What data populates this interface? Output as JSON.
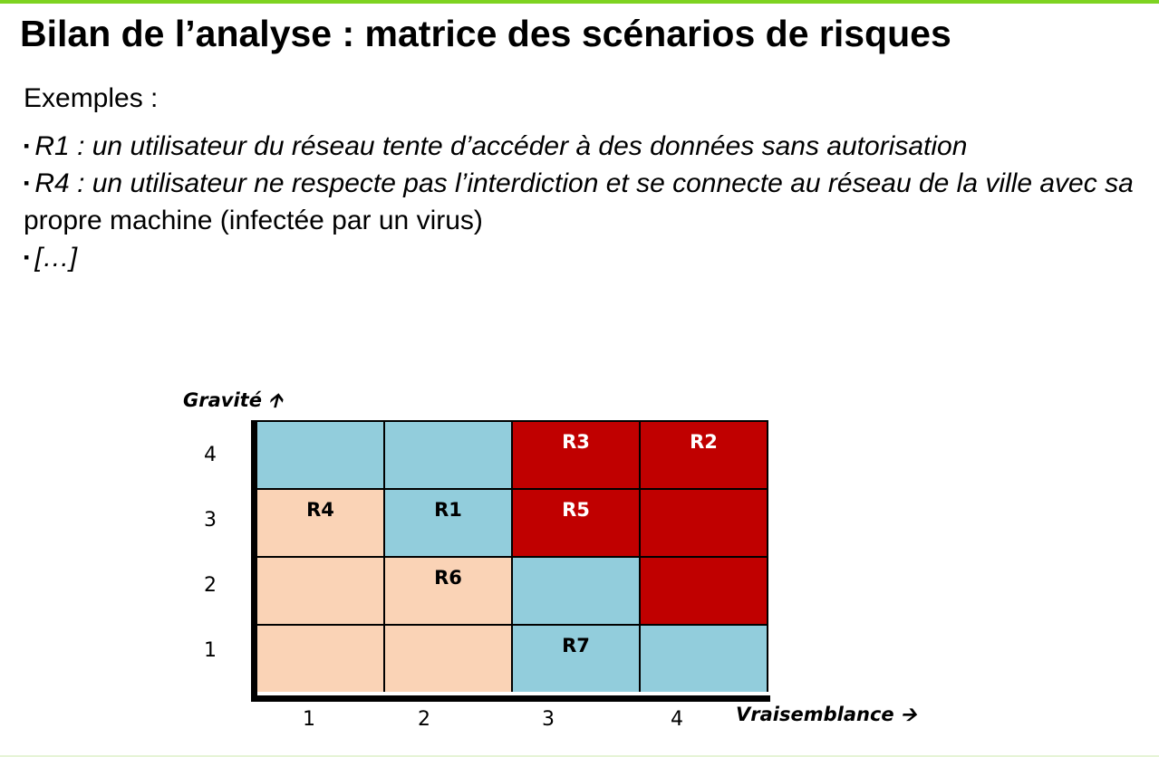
{
  "title": "Bilan de l’analyse : matrice des scénarios de risques",
  "intro": "Exemples :",
  "bullets": [
    {
      "marker": "▪",
      "italic": "R1 : un utilisateur du réseau tente d’accéder à des données sans autorisation",
      "plain": ""
    },
    {
      "marker": "▪",
      "italic": "R4 : un utilisateur ne respecte pas l’interdiction et se connecte au réseau de la ville avec sa",
      "plain": "propre machine (infectée par un virus)"
    },
    {
      "marker": "▪",
      "italic": "[…]",
      "plain": ""
    }
  ],
  "matrix": {
    "y_axis_title": "Gravité 🡩",
    "x_axis_title": "Vraisemblance 🡪",
    "y_ticks": [
      "4",
      "3",
      "2",
      "1"
    ],
    "x_ticks": [
      "1",
      "2",
      "3",
      "4"
    ],
    "colors": {
      "blue": "#92cddc",
      "peach": "#fad3b6",
      "red": "#c00000"
    },
    "rows": [
      {
        "gravite": "4",
        "cells": [
          {
            "color": "blue",
            "label": ""
          },
          {
            "color": "blue",
            "label": ""
          },
          {
            "color": "red",
            "label": "R3"
          },
          {
            "color": "red",
            "label": "R2"
          }
        ]
      },
      {
        "gravite": "3",
        "cells": [
          {
            "color": "peach",
            "label": "R4"
          },
          {
            "color": "blue",
            "label": "R1"
          },
          {
            "color": "red",
            "label": "R5"
          },
          {
            "color": "red",
            "label": ""
          }
        ]
      },
      {
        "gravite": "2",
        "cells": [
          {
            "color": "peach",
            "label": ""
          },
          {
            "color": "peach",
            "label": "R6"
          },
          {
            "color": "blue",
            "label": ""
          },
          {
            "color": "red",
            "label": ""
          }
        ]
      },
      {
        "gravite": "1",
        "cells": [
          {
            "color": "peach",
            "label": ""
          },
          {
            "color": "peach",
            "label": ""
          },
          {
            "color": "blue",
            "label": "R7"
          },
          {
            "color": "blue",
            "label": ""
          }
        ]
      }
    ]
  }
}
